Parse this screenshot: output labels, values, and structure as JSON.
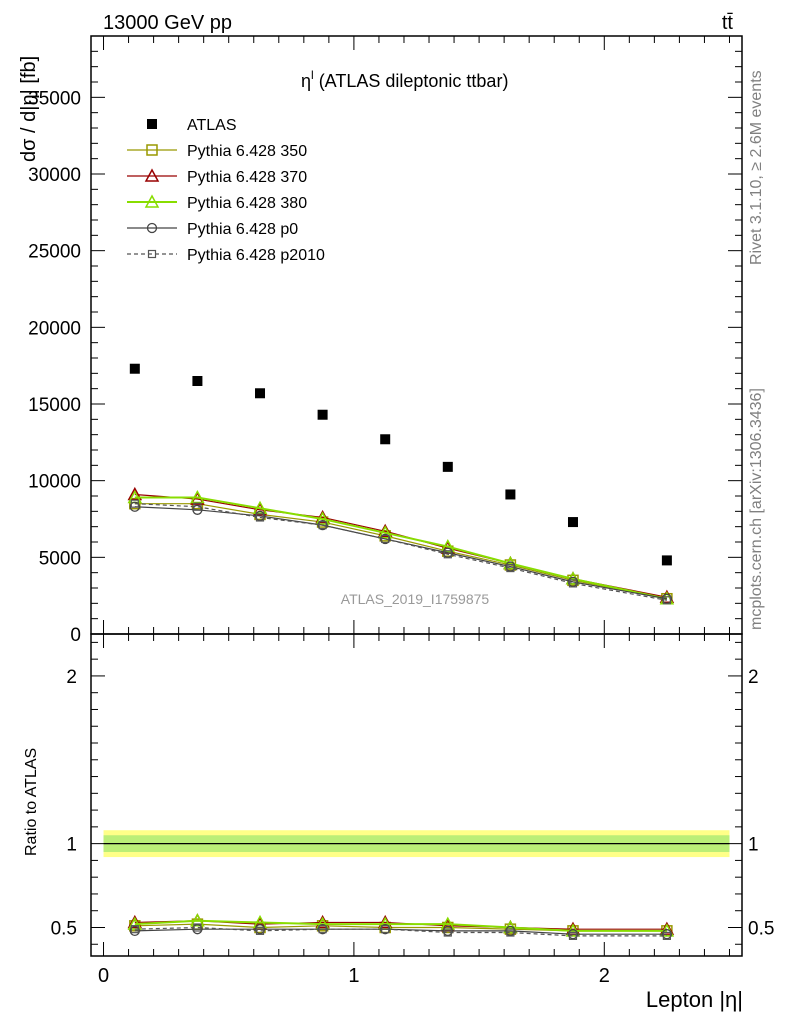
{
  "header": {
    "energy_label": "13000 GeV pp",
    "process_label": "tt̄"
  },
  "side_labels": {
    "rivet": "Rivet 3.1.10, ≥ 2.6M events",
    "mcplots": "mcplots.cern.ch [arXiv:1306.3436]"
  },
  "chart_data": [
    {
      "type": "scatter",
      "panel": "main",
      "title_main": "η",
      "title_sup": "l",
      "title_rest": " (ATLAS dileptonic ttbar)",
      "ylabel": "dσ / d|η| [fb]",
      "analysis_label": "ATLAS_2019_I1759875",
      "xlim": [
        -0.05,
        2.55
      ],
      "ylim": [
        0,
        39000
      ],
      "yticks": [
        0,
        5000,
        10000,
        15000,
        20000,
        25000,
        30000,
        35000
      ],
      "ytick_labels": [
        "0",
        "5000",
        "10000",
        "15000",
        "20000",
        "25000",
        "30000",
        "35000"
      ],
      "x": [
        0.125,
        0.375,
        0.625,
        0.875,
        1.125,
        1.375,
        1.625,
        1.875,
        2.25
      ],
      "series": [
        {
          "name": "ATLAS",
          "color": "#000000",
          "marker": "square-filled",
          "values": [
            17300,
            16500,
            15700,
            14300,
            12700,
            10900,
            9100,
            7300,
            4800
          ]
        },
        {
          "name": "Pythia 6.428 350",
          "color": "#999900",
          "marker": "square-open",
          "values": [
            8500,
            8500,
            7800,
            7300,
            6400,
            5400,
            4500,
            3500,
            2300
          ]
        },
        {
          "name": "Pythia 6.428 370",
          "color": "#990000",
          "marker": "triangle-open",
          "values": [
            9100,
            8800,
            8100,
            7600,
            6700,
            5600,
            4600,
            3600,
            2400
          ]
        },
        {
          "name": "Pythia 6.428 380",
          "color": "#88dd00",
          "marker": "triangle-open",
          "values": [
            8900,
            8900,
            8200,
            7500,
            6600,
            5700,
            4600,
            3600,
            2300
          ]
        },
        {
          "name": "Pythia 6.428 p0",
          "color": "#444444",
          "marker": "circle-open",
          "values": [
            8300,
            8100,
            7700,
            7100,
            6200,
            5300,
            4400,
            3400,
            2300
          ]
        },
        {
          "name": "Pythia 6.428 p2010",
          "color": "#555555",
          "marker": "square-small-dashed",
          "values": [
            8500,
            8300,
            7600,
            7100,
            6200,
            5200,
            4300,
            3300,
            2200
          ]
        }
      ]
    },
    {
      "type": "line",
      "panel": "ratio",
      "ylabel": "Ratio to ATLAS",
      "xlabel": "Lepton |η|",
      "xlim": [
        -0.05,
        2.55
      ],
      "ylim": [
        0.33,
        2.25
      ],
      "xticks": [
        0,
        1,
        2
      ],
      "xtick_labels": [
        "0",
        "1",
        "2"
      ],
      "yticks": [
        0.5,
        1,
        2
      ],
      "ytick_labels": [
        "0.5",
        "1",
        "2"
      ],
      "x": [
        0.125,
        0.375,
        0.625,
        0.875,
        1.125,
        1.375,
        1.625,
        1.875,
        2.25
      ],
      "band": {
        "outer": [
          0.92,
          1.08
        ],
        "inner": [
          0.95,
          1.05
        ],
        "outer_color": "#ffff88",
        "inner_color": "#bbee77"
      },
      "series": [
        {
          "name": "Pythia 6.428 350",
          "color": "#999900",
          "marker": "square-open",
          "values": [
            0.51,
            0.52,
            0.5,
            0.51,
            0.5,
            0.5,
            0.49,
            0.48,
            0.48
          ]
        },
        {
          "name": "Pythia 6.428 370",
          "color": "#990000",
          "marker": "triangle-open",
          "values": [
            0.53,
            0.54,
            0.52,
            0.53,
            0.53,
            0.51,
            0.5,
            0.49,
            0.49
          ]
        },
        {
          "name": "Pythia 6.428 380",
          "color": "#88dd00",
          "marker": "triangle-open",
          "values": [
            0.52,
            0.54,
            0.53,
            0.52,
            0.52,
            0.52,
            0.5,
            0.48,
            0.48
          ]
        },
        {
          "name": "Pythia 6.428 p0",
          "color": "#444444",
          "marker": "circle-open",
          "values": [
            0.48,
            0.49,
            0.49,
            0.49,
            0.49,
            0.48,
            0.48,
            0.46,
            0.46
          ]
        },
        {
          "name": "Pythia 6.428 p2010",
          "color": "#555555",
          "marker": "square-small-dashed",
          "values": [
            0.49,
            0.5,
            0.48,
            0.49,
            0.49,
            0.47,
            0.47,
            0.45,
            0.45
          ]
        }
      ]
    }
  ]
}
